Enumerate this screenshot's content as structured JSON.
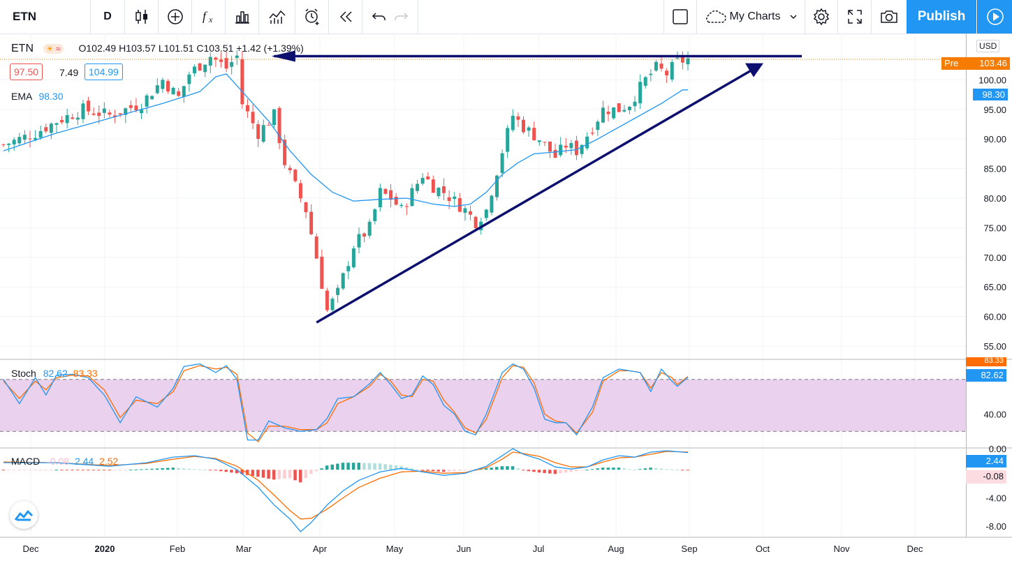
{
  "toolbar": {
    "symbol": "ETN",
    "interval": "D",
    "icons": [
      "candles-icon",
      "add-icon",
      "fx-icon",
      "bar-chart-icon",
      "indicator-icon",
      "alarm-icon",
      "replay-icon",
      "undo-icon",
      "redo-icon",
      "fullscreen-square-icon",
      "cloud-icon",
      "settings-icon",
      "fullscreen-icon",
      "camera-icon",
      "play-icon"
    ],
    "mycharts_label": "My Charts",
    "publish_label": "Publish"
  },
  "legend": {
    "symbol": "ETN",
    "ohlc": "O102.49 H103.57 L101.51 C103.51 +1.42 (+1.39%)",
    "bid": "97.50",
    "spread": "7.49",
    "ask": "104.99",
    "ema_label": "EMA",
    "ema_value": "98.30"
  },
  "stoch_legend": {
    "label": "Stoch",
    "k": "82.62",
    "d": "83.33"
  },
  "macd_legend": {
    "label": "MACD",
    "hist": "-0.08",
    "macd": "2.44",
    "signal": "2.52"
  },
  "scale": {
    "currency": "USD",
    "pre_label": "Pre",
    "pre_value": "103.46",
    "ema_tag": "98.30",
    "stoch_k_tag": "82.62",
    "stoch_d_tag": "83.33",
    "macd_tag": "2.44",
    "hist_tag": "-0.08"
  },
  "colors": {
    "up": "#26a69a",
    "down": "#ef5350",
    "ema": "#2196f3",
    "stoch_k": "#2196f3",
    "stoch_d": "#ff6d00",
    "stoch_band": "#e1bee7",
    "annotation": "#0d0f6e",
    "pre": "#f57c00"
  },
  "chart_data": [
    {
      "type": "candlestick",
      "symbol": "ETN",
      "interval": "D",
      "ylim": [
        53,
        107
      ],
      "yticks": [
        "55.00",
        "60.00",
        "65.00",
        "70.00",
        "75.00",
        "80.00",
        "85.00",
        "90.00",
        "95.00",
        "100.00"
      ],
      "xticks": [
        "Dec",
        "2020",
        "Feb",
        "Mar",
        "Apr",
        "May",
        "Jun",
        "Jul",
        "Aug",
        "Sep",
        "Oct",
        "Nov",
        "Dec"
      ],
      "grid": true,
      "close_path": [
        [
          0,
          89
        ],
        [
          6,
          91
        ],
        [
          10,
          93
        ],
        [
          15,
          95
        ],
        [
          20,
          94
        ],
        [
          26,
          96
        ],
        [
          30,
          100
        ],
        [
          33,
          97
        ],
        [
          35,
          101
        ],
        [
          39,
          104
        ],
        [
          42,
          102
        ],
        [
          44,
          104
        ],
        [
          45,
          96
        ],
        [
          48,
          91
        ],
        [
          51,
          94
        ],
        [
          53,
          86
        ],
        [
          57,
          78
        ],
        [
          59,
          70
        ],
        [
          61,
          61
        ],
        [
          63,
          64
        ],
        [
          66,
          72
        ],
        [
          69,
          75
        ],
        [
          71,
          81
        ],
        [
          73,
          80
        ],
        [
          75,
          78
        ],
        [
          77,
          81
        ],
        [
          79,
          84
        ],
        [
          81,
          82
        ],
        [
          83,
          81
        ],
        [
          87,
          78
        ],
        [
          89,
          76
        ],
        [
          91,
          78
        ],
        [
          94,
          88
        ],
        [
          96,
          94
        ],
        [
          98,
          92
        ],
        [
          101,
          90
        ],
        [
          104,
          87
        ],
        [
          106,
          89
        ],
        [
          108,
          88
        ],
        [
          111,
          92
        ],
        [
          113,
          95
        ],
        [
          116,
          95
        ],
        [
          118,
          96
        ],
        [
          121,
          100
        ],
        [
          123,
          102
        ],
        [
          125,
          101
        ],
        [
          127,
          103
        ],
        [
          129,
          103.5
        ]
      ],
      "ema_path": [
        [
          0,
          88
        ],
        [
          10,
          91
        ],
        [
          20,
          93.5
        ],
        [
          30,
          96
        ],
        [
          37,
          98
        ],
        [
          40,
          100.5
        ],
        [
          42,
          101
        ],
        [
          44,
          99
        ],
        [
          47,
          96
        ],
        [
          50,
          93
        ],
        [
          54,
          88
        ],
        [
          58,
          84
        ],
        [
          62,
          81
        ],
        [
          66,
          79.5
        ],
        [
          71,
          79.8
        ],
        [
          76,
          80
        ],
        [
          81,
          79
        ],
        [
          85,
          78.6
        ],
        [
          88,
          79
        ],
        [
          91,
          81
        ],
        [
          94,
          84
        ],
        [
          97,
          86
        ],
        [
          100,
          87.5
        ],
        [
          104,
          87.8
        ],
        [
          108,
          88.2
        ],
        [
          112,
          90
        ],
        [
          116,
          92
        ],
        [
          120,
          94
        ],
        [
          124,
          96
        ],
        [
          128,
          98.3
        ]
      ],
      "last_close": 103.51,
      "premarket": 103.46,
      "ema_last": 98.3
    },
    {
      "type": "line",
      "name": "Stoch",
      "ylim": [
        0,
        100
      ],
      "yticks": [
        "0.00",
        "40.00"
      ],
      "band": [
        20,
        80
      ],
      "k_path": [
        [
          0,
          80
        ],
        [
          3,
          52
        ],
        [
          6,
          82
        ],
        [
          8,
          62
        ],
        [
          10,
          85
        ],
        [
          13,
          86
        ],
        [
          16,
          82
        ],
        [
          19,
          62
        ],
        [
          22,
          30
        ],
        [
          25,
          60
        ],
        [
          29,
          48
        ],
        [
          32,
          70
        ],
        [
          34,
          95
        ],
        [
          37,
          98
        ],
        [
          40,
          88
        ],
        [
          42,
          96
        ],
        [
          44,
          80
        ],
        [
          46,
          10
        ],
        [
          48,
          10
        ],
        [
          50,
          32
        ],
        [
          53,
          24
        ],
        [
          56,
          20
        ],
        [
          59,
          22
        ],
        [
          61,
          35
        ],
        [
          63,
          58
        ],
        [
          66,
          60
        ],
        [
          69,
          75
        ],
        [
          71,
          88
        ],
        [
          73,
          74
        ],
        [
          75,
          58
        ],
        [
          77,
          62
        ],
        [
          79,
          84
        ],
        [
          81,
          74
        ],
        [
          83,
          50
        ],
        [
          85,
          40
        ],
        [
          87,
          20
        ],
        [
          89,
          16
        ],
        [
          91,
          40
        ],
        [
          94,
          88
        ],
        [
          96,
          98
        ],
        [
          98,
          92
        ],
        [
          100,
          70
        ],
        [
          102,
          34
        ],
        [
          104,
          30
        ],
        [
          106,
          30
        ],
        [
          108,
          16
        ],
        [
          111,
          48
        ],
        [
          113,
          82
        ],
        [
          116,
          92
        ],
        [
          118,
          90
        ],
        [
          120,
          88
        ],
        [
          122,
          66
        ],
        [
          124,
          92
        ],
        [
          126,
          78
        ],
        [
          127,
          72
        ],
        [
          129,
          82.6
        ]
      ],
      "d_path": [
        [
          0,
          78
        ],
        [
          3,
          58
        ],
        [
          6,
          78
        ],
        [
          8,
          68
        ],
        [
          10,
          82
        ],
        [
          13,
          85
        ],
        [
          16,
          84
        ],
        [
          19,
          68
        ],
        [
          22,
          36
        ],
        [
          25,
          56
        ],
        [
          29,
          52
        ],
        [
          32,
          66
        ],
        [
          34,
          90
        ],
        [
          37,
          96
        ],
        [
          40,
          92
        ],
        [
          42,
          94
        ],
        [
          44,
          86
        ],
        [
          46,
          18
        ],
        [
          48,
          8
        ],
        [
          50,
          26
        ],
        [
          53,
          26
        ],
        [
          56,
          22
        ],
        [
          59,
          22
        ],
        [
          61,
          30
        ],
        [
          63,
          52
        ],
        [
          66,
          60
        ],
        [
          69,
          72
        ],
        [
          71,
          86
        ],
        [
          73,
          78
        ],
        [
          75,
          62
        ],
        [
          77,
          60
        ],
        [
          79,
          80
        ],
        [
          81,
          78
        ],
        [
          83,
          56
        ],
        [
          85,
          42
        ],
        [
          87,
          24
        ],
        [
          89,
          18
        ],
        [
          91,
          34
        ],
        [
          94,
          82
        ],
        [
          96,
          96
        ],
        [
          98,
          94
        ],
        [
          100,
          76
        ],
        [
          102,
          40
        ],
        [
          104,
          32
        ],
        [
          106,
          30
        ],
        [
          108,
          18
        ],
        [
          111,
          42
        ],
        [
          113,
          78
        ],
        [
          116,
          90
        ],
        [
          118,
          90
        ],
        [
          120,
          88
        ],
        [
          122,
          70
        ],
        [
          124,
          88
        ],
        [
          126,
          82
        ],
        [
          127,
          74
        ],
        [
          129,
          83.3
        ]
      ],
      "k_last": 82.62,
      "d_last": 83.33
    },
    {
      "type": "bar",
      "name": "MACD",
      "ylim": [
        -9.5,
        2.8
      ],
      "yticks": [
        "-0.08",
        "-4.00",
        "-8.00"
      ],
      "macd_path": [
        [
          0,
          1
        ],
        [
          10,
          1
        ],
        [
          20,
          0.5
        ],
        [
          27,
          1
        ],
        [
          32,
          1.8
        ],
        [
          36,
          2
        ],
        [
          40,
          1.5
        ],
        [
          44,
          0
        ],
        [
          48,
          -2.5
        ],
        [
          51,
          -5
        ],
        [
          54,
          -7
        ],
        [
          56,
          -8.8
        ],
        [
          58,
          -7.5
        ],
        [
          61,
          -5
        ],
        [
          64,
          -3
        ],
        [
          67,
          -1.5
        ],
        [
          71,
          -0.3
        ],
        [
          75,
          0.2
        ],
        [
          79,
          -0.3
        ],
        [
          83,
          -0.8
        ],
        [
          87,
          -0.5
        ],
        [
          91,
          0.5
        ],
        [
          94,
          2
        ],
        [
          96,
          3
        ],
        [
          98,
          2.2
        ],
        [
          101,
          1.5
        ],
        [
          104,
          0.4
        ],
        [
          107,
          0.1
        ],
        [
          110,
          0.4
        ],
        [
          113,
          1.4
        ],
        [
          116,
          2
        ],
        [
          119,
          1.8
        ],
        [
          122,
          2.5
        ],
        [
          125,
          2.7
        ],
        [
          129,
          2.44
        ]
      ],
      "signal_path": [
        [
          0,
          1.1
        ],
        [
          10,
          1
        ],
        [
          20,
          0.6
        ],
        [
          27,
          0.9
        ],
        [
          32,
          1.5
        ],
        [
          36,
          1.9
        ],
        [
          40,
          1.6
        ],
        [
          44,
          0.5
        ],
        [
          48,
          -1.5
        ],
        [
          51,
          -3.6
        ],
        [
          54,
          -5.8
        ],
        [
          56,
          -7
        ],
        [
          58,
          -6.9
        ],
        [
          61,
          -5.6
        ],
        [
          64,
          -4
        ],
        [
          67,
          -2.5
        ],
        [
          71,
          -1.2
        ],
        [
          75,
          -0.3
        ],
        [
          79,
          -0.2
        ],
        [
          83,
          -0.5
        ],
        [
          87,
          -0.4
        ],
        [
          91,
          0.3
        ],
        [
          94,
          1.5
        ],
        [
          96,
          2.5
        ],
        [
          98,
          2.3
        ],
        [
          101,
          1.9
        ],
        [
          104,
          1
        ],
        [
          107,
          0.4
        ],
        [
          110,
          0.4
        ],
        [
          113,
          1.1
        ],
        [
          116,
          1.7
        ],
        [
          119,
          1.8
        ],
        [
          122,
          2.2
        ],
        [
          125,
          2.6
        ],
        [
          129,
          2.52
        ]
      ],
      "hist_last": -0.08,
      "macd_last": 2.44,
      "signal_last": 2.52
    }
  ]
}
